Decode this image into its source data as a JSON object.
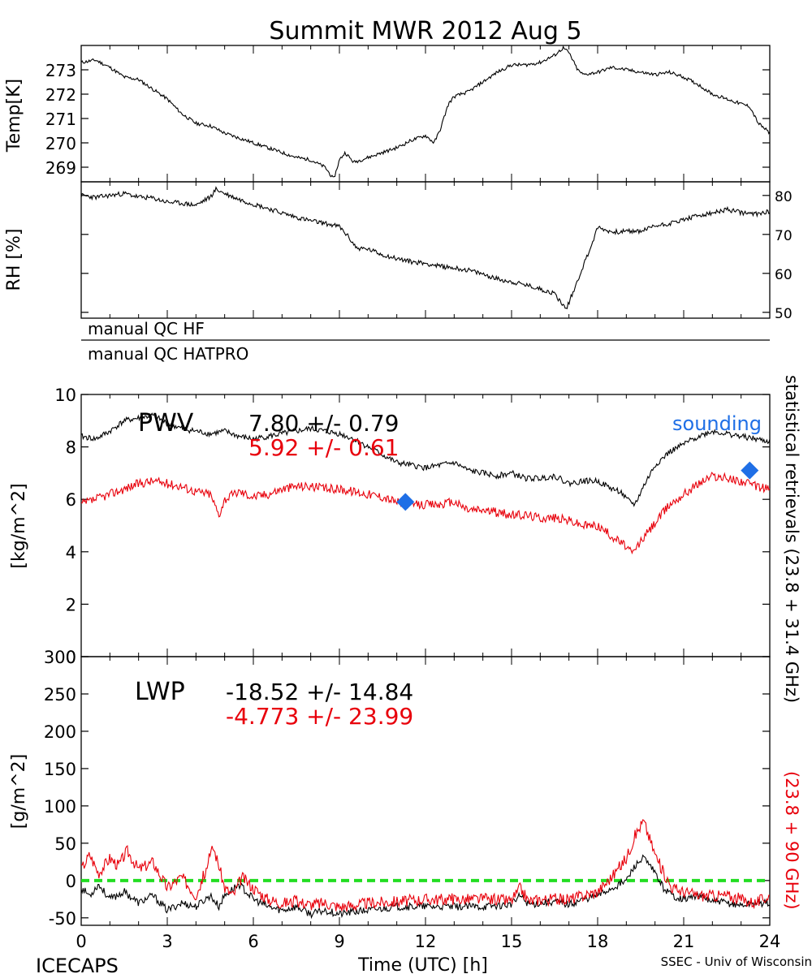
{
  "title": "Summit MWR 2012 Aug  5",
  "footer": {
    "left": "ICECAPS",
    "center": "Time (UTC) [h]",
    "right": "SSEC - Univ of Wisconsin"
  },
  "qc": {
    "hf": "manual QC HF",
    "hatpro": "manual QC HATPRO"
  },
  "right_labels": {
    "black": "statistical retrievals (23.8 + 31.4 GHz)",
    "red": "(23.8 + 90 GHz)"
  },
  "colors": {
    "black": "#000000",
    "red": "#e8000b",
    "blue": "#1f6fe6",
    "green": "#22dd22"
  },
  "chart_data": [
    {
      "type": "line",
      "name": "temperature",
      "ylabel": "Temp[K]",
      "xlim": [
        0,
        24
      ],
      "ylim": [
        268.4,
        274.0
      ],
      "yticks": [
        269,
        270,
        271,
        272,
        273
      ],
      "series": [
        {
          "x": [
            0,
            0.5,
            1,
            1.5,
            2,
            2.5,
            3,
            3.5,
            4,
            4.5,
            5,
            5.5,
            6,
            6.5,
            7,
            7.5,
            8,
            8.5,
            8.8,
            9,
            9.2,
            9.5,
            10,
            10.5,
            11,
            11.5,
            12,
            12.3,
            12.5,
            12.8,
            13,
            13.5,
            14,
            14.5,
            15,
            15.5,
            16,
            16.5,
            16.8,
            17,
            17.3,
            17.5,
            18,
            18.5,
            19,
            19.5,
            20,
            20.5,
            21,
            21.5,
            22,
            22.5,
            23,
            23.3,
            23.6,
            24
          ],
          "values": [
            273.3,
            273.4,
            273.1,
            272.7,
            272.6,
            272.2,
            271.8,
            271.2,
            270.8,
            270.7,
            270.4,
            270.2,
            270.0,
            269.8,
            269.6,
            269.4,
            269.3,
            269.0,
            268.5,
            269.3,
            269.6,
            269.2,
            269.4,
            269.6,
            269.8,
            270.1,
            270.3,
            270.0,
            270.5,
            271.6,
            271.9,
            272.1,
            272.5,
            272.9,
            273.2,
            273.2,
            273.3,
            273.6,
            273.9,
            273.7,
            273.0,
            272.8,
            272.9,
            273.1,
            273.0,
            272.9,
            272.8,
            272.9,
            272.7,
            272.4,
            272.0,
            271.8,
            271.6,
            271.5,
            270.8,
            270.4
          ]
        }
      ]
    },
    {
      "type": "line",
      "name": "relative humidity",
      "ylabel": "RH [%]",
      "xlim": [
        0,
        24
      ],
      "ylim": [
        48.5,
        83.5
      ],
      "yticks": [
        50,
        60,
        70,
        80
      ],
      "series": [
        {
          "x": [
            0,
            0.5,
            1,
            1.5,
            2,
            2.5,
            3,
            3.5,
            4,
            4.5,
            4.7,
            5,
            5.5,
            6,
            6.5,
            7,
            7.5,
            8,
            8.5,
            9,
            9.3,
            9.6,
            10,
            10.5,
            11,
            11.5,
            12,
            12.5,
            13,
            13.5,
            14,
            14.5,
            15,
            15.5,
            16,
            16.5,
            16.9,
            17.2,
            17.5,
            17.8,
            18,
            18.5,
            19,
            19.5,
            20,
            20.5,
            21,
            21.5,
            22,
            22.5,
            23,
            23.5,
            24
          ],
          "values": [
            80.0,
            79.5,
            80.0,
            80.5,
            79.6,
            79.3,
            78.3,
            78.0,
            77.5,
            79.6,
            81.6,
            80.5,
            79.0,
            77.8,
            76.7,
            75.5,
            74.4,
            73.5,
            72.8,
            72.0,
            69.5,
            66.5,
            66.2,
            64.8,
            63.8,
            63.0,
            62.6,
            61.8,
            61.4,
            60.8,
            59.8,
            58.6,
            57.8,
            57.0,
            56.0,
            54.8,
            50.8,
            56.2,
            62.0,
            67.5,
            71.8,
            70.6,
            70.8,
            70.8,
            72.2,
            72.8,
            73.8,
            74.8,
            75.4,
            76.4,
            75.6,
            75.2,
            76.0
          ]
        }
      ]
    },
    {
      "type": "line",
      "name": "precipitable water vapor",
      "ylabel": "[kg/m^2]",
      "xlim": [
        0,
        24
      ],
      "ylim": [
        0,
        10
      ],
      "yticks": [
        0,
        2,
        4,
        6,
        8,
        10
      ],
      "annotation_label": "PWV",
      "stats": [
        {
          "text": "7.80 +/-   0.79",
          "color": "black"
        },
        {
          "text": "5.92 +/-   0.61",
          "color": "red"
        }
      ],
      "legend": "sounding",
      "series": [
        {
          "color": "black",
          "x": [
            0,
            0.5,
            1,
            1.5,
            2,
            2.5,
            3,
            3.5,
            4,
            4.5,
            5,
            5.5,
            6,
            6.5,
            7,
            7.5,
            8,
            8.5,
            9,
            9.5,
            10,
            10.5,
            11,
            11.5,
            12,
            12.5,
            13,
            13.5,
            14,
            14.5,
            15,
            15.5,
            16,
            16.5,
            17,
            17.5,
            18,
            18.5,
            18.8,
            19,
            19.3,
            19.6,
            20,
            20.5,
            21,
            21.5,
            22,
            22.5,
            23,
            23.5,
            24
          ],
          "values": [
            8.4,
            8.3,
            8.6,
            9.0,
            9.1,
            9.2,
            8.9,
            8.7,
            8.6,
            8.5,
            8.6,
            8.4,
            8.3,
            8.4,
            8.5,
            8.6,
            8.7,
            8.6,
            8.5,
            8.3,
            8.0,
            7.7,
            7.4,
            7.3,
            7.2,
            7.3,
            7.4,
            7.1,
            7.0,
            6.9,
            7.0,
            6.8,
            6.8,
            6.9,
            6.6,
            6.7,
            6.7,
            6.4,
            6.3,
            6.0,
            5.8,
            6.5,
            7.3,
            7.8,
            8.1,
            8.4,
            8.6,
            8.5,
            8.4,
            8.3,
            8.2
          ]
        },
        {
          "color": "red",
          "x": [
            0,
            0.5,
            1,
            1.5,
            2,
            2.5,
            3,
            3.5,
            4,
            4.5,
            4.8,
            5,
            5.5,
            6,
            6.5,
            7,
            7.5,
            8,
            8.5,
            9,
            9.5,
            10,
            10.5,
            11,
            11.5,
            12,
            12.5,
            13,
            13.5,
            14,
            14.5,
            15,
            15.5,
            16,
            16.5,
            17,
            17.5,
            18,
            18.5,
            19,
            19.2,
            19.5,
            20,
            20.5,
            21,
            21.5,
            22,
            22.5,
            23,
            23.5,
            24
          ],
          "values": [
            5.8,
            6.0,
            6.2,
            6.4,
            6.6,
            6.7,
            6.6,
            6.5,
            6.3,
            6.2,
            5.4,
            6.0,
            6.3,
            6.1,
            6.2,
            6.4,
            6.5,
            6.5,
            6.4,
            6.4,
            6.3,
            6.2,
            6.1,
            5.9,
            5.8,
            5.8,
            5.8,
            5.9,
            5.6,
            5.6,
            5.5,
            5.4,
            5.4,
            5.3,
            5.3,
            5.2,
            5.0,
            5.0,
            4.6,
            4.2,
            3.9,
            4.4,
            5.1,
            5.8,
            6.2,
            6.6,
            6.9,
            6.8,
            6.7,
            6.5,
            6.4
          ]
        }
      ],
      "sounding_points": [
        {
          "x": 11.3,
          "y": 5.9
        },
        {
          "x": 23.3,
          "y": 7.1
        }
      ]
    },
    {
      "type": "line",
      "name": "liquid water path",
      "ylabel": "[g/m^2]",
      "xlabel": "Time (UTC) [h]",
      "xlim": [
        0,
        24
      ],
      "ylim": [
        -60,
        300
      ],
      "yticks": [
        -50,
        0,
        50,
        100,
        150,
        200,
        250,
        300
      ],
      "xticks": [
        0,
        3,
        6,
        9,
        12,
        15,
        18,
        21,
        24
      ],
      "annotation_label": "LWP",
      "stats": [
        {
          "text": "-18.52 +/-   14.84",
          "color": "black"
        },
        {
          "text": "-4.773 +/-   23.99",
          "color": "red"
        }
      ],
      "reference_line": 0,
      "series": [
        {
          "color": "black",
          "x": [
            0,
            0.3,
            0.6,
            1,
            1.5,
            2,
            2.5,
            3,
            3.5,
            4,
            4.5,
            4.8,
            5,
            5.5,
            6,
            6.5,
            7,
            7.5,
            8,
            8.5,
            9,
            9.5,
            10,
            11,
            12,
            13,
            14,
            15,
            15.3,
            15.6,
            16,
            16.5,
            17,
            17.5,
            18,
            18.5,
            19,
            19.3,
            19.6,
            20,
            20.3,
            20.6,
            21,
            21.5,
            22,
            22.5,
            23,
            23.5,
            24
          ],
          "values": [
            -10,
            -20,
            -5,
            -25,
            -15,
            -30,
            -20,
            -40,
            -30,
            -35,
            -20,
            -35,
            -20,
            -5,
            -25,
            -35,
            -40,
            -35,
            -45,
            -40,
            -45,
            -42,
            -40,
            -35,
            -35,
            -35,
            -35,
            -32,
            -20,
            -32,
            -30,
            -28,
            -32,
            -25,
            -20,
            -10,
            0,
            20,
            30,
            10,
            -10,
            -20,
            -25,
            -20,
            -28,
            -30,
            -33,
            -30,
            -30
          ]
        },
        {
          "color": "red",
          "x": [
            0,
            0.3,
            0.6,
            1,
            1.3,
            1.6,
            2,
            2.5,
            3,
            3.5,
            4,
            4.3,
            4.6,
            4.8,
            5,
            5.3,
            5.6,
            6,
            6.5,
            7,
            7.5,
            8,
            8.5,
            9,
            9.5,
            10,
            11,
            12,
            13,
            14,
            15,
            15.3,
            15.6,
            16,
            16.5,
            17,
            17.5,
            18,
            18.5,
            19,
            19.3,
            19.6,
            20,
            20.3,
            20.6,
            21,
            21.5,
            22,
            22.5,
            23,
            23.5,
            24
          ],
          "values": [
            15,
            35,
            10,
            30,
            20,
            40,
            15,
            25,
            -10,
            5,
            -20,
            10,
            45,
            20,
            -10,
            -20,
            5,
            -10,
            -25,
            -30,
            -28,
            -32,
            -30,
            -35,
            -33,
            -30,
            -28,
            -25,
            -25,
            -25,
            -27,
            -10,
            -28,
            -25,
            -25,
            -25,
            -20,
            -15,
            5,
            30,
            60,
            80,
            35,
            10,
            -10,
            -15,
            -20,
            -20,
            -20,
            -25,
            -30,
            -20
          ]
        }
      ]
    }
  ]
}
